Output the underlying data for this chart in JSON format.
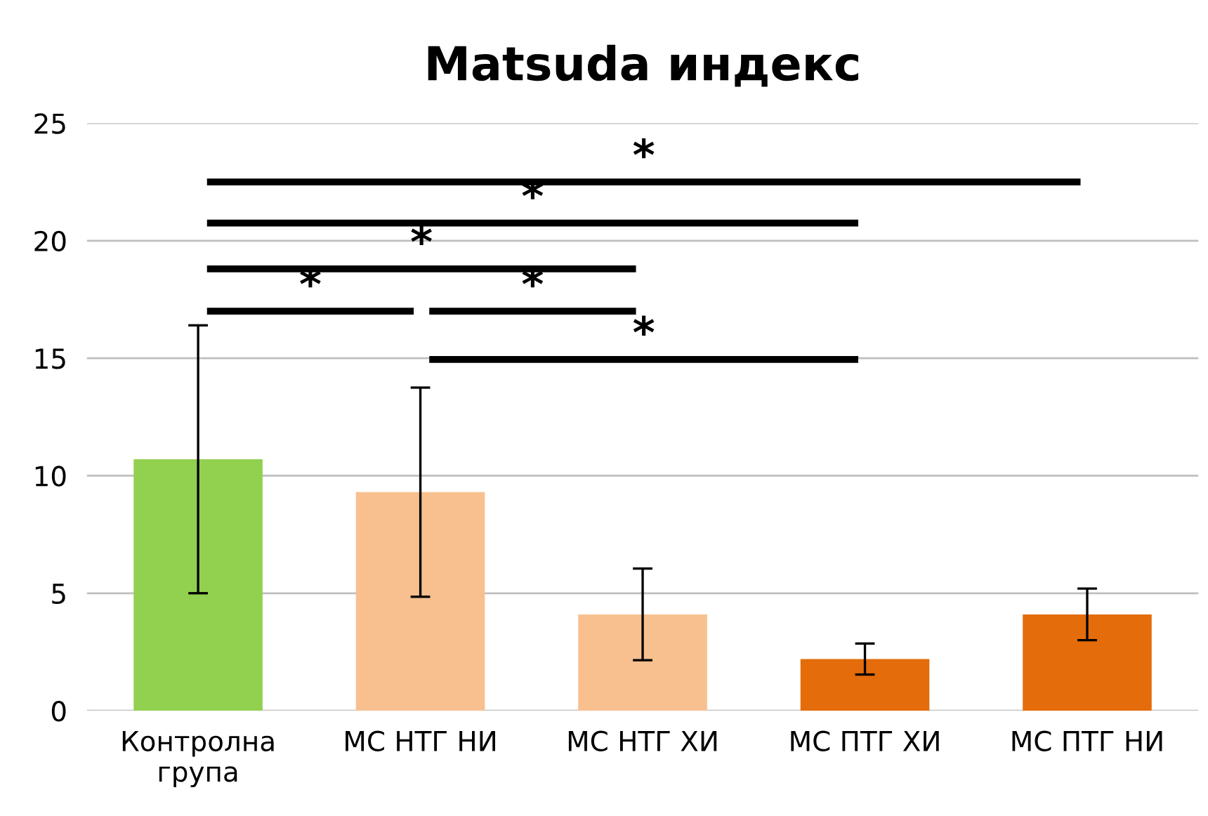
{
  "chart_data": {
    "type": "bar",
    "title": "Matsuda индекс",
    "categories": [
      "Контролна\nгрупа",
      "МС НТГ НИ",
      "МС НТГ ХИ",
      "МС ПТГ ХИ",
      "МС ПТГ НИ"
    ],
    "values": [
      10.7,
      9.3,
      4.1,
      2.2,
      4.1
    ],
    "errors": [
      5.7,
      4.45,
      1.95,
      0.66,
      1.1
    ],
    "colors": [
      "#92d050",
      "#f8c08f",
      "#f8c08f",
      "#e46c0a",
      "#e46c0a"
    ],
    "ylim": [
      0,
      25
    ],
    "yticks": [
      0,
      5,
      10,
      15,
      20,
      25
    ],
    "grid": "y",
    "annotations": [
      "*",
      "*",
      "*",
      "*",
      "*",
      "*"
    ]
  }
}
